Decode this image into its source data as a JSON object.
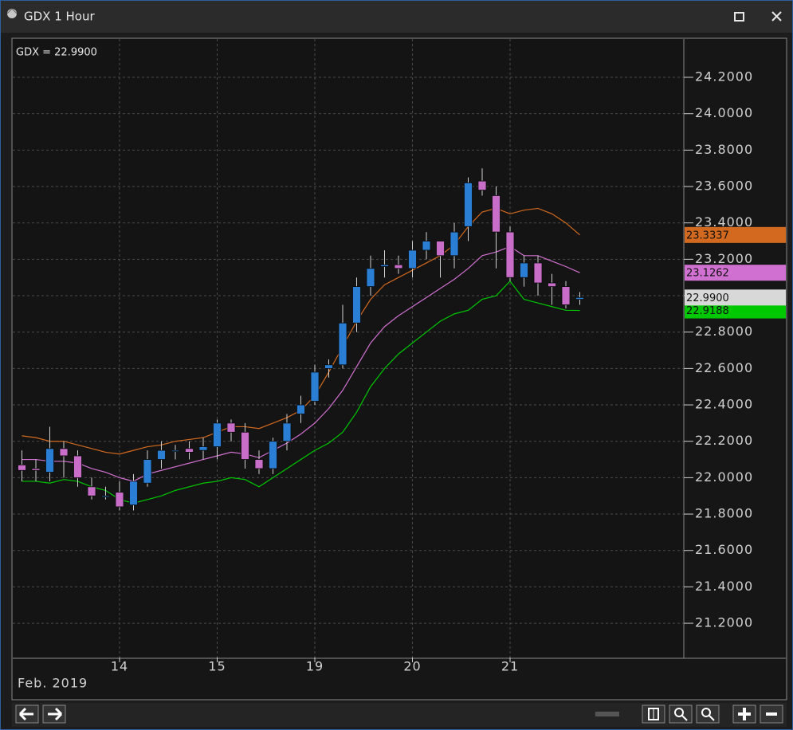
{
  "window_title": "GDX 1 Hour",
  "chart_data": {
    "type": "candlestick",
    "quote_label": "GDX = 22.9900",
    "date_label": "Feb. 2019",
    "x": [
      null,
      null,
      null,
      null,
      null,
      null,
      null,
      "14",
      null,
      null,
      null,
      null,
      null,
      null,
      "15",
      null,
      null,
      null,
      null,
      null,
      null,
      "19",
      null,
      null,
      null,
      null,
      null,
      null,
      "20",
      null,
      null,
      null,
      null,
      null,
      null,
      "21",
      null,
      null,
      null,
      null,
      null
    ],
    "open": [
      22.07,
      22.05,
      22.03,
      22.16,
      22.12,
      21.95,
      21.9,
      21.92,
      21.85,
      21.97,
      22.1,
      22.15,
      22.16,
      22.15,
      22.17,
      22.3,
      22.25,
      22.1,
      22.05,
      22.2,
      22.35,
      22.42,
      22.6,
      22.62,
      22.85,
      23.05,
      23.16,
      23.17,
      23.15,
      23.25,
      23.3,
      23.22,
      23.38,
      23.63,
      23.55,
      23.35,
      23.1,
      23.18,
      23.07,
      23.05,
      22.98
    ],
    "high": [
      22.15,
      22.1,
      22.28,
      22.2,
      22.15,
      22.0,
      21.95,
      21.98,
      22.02,
      22.15,
      22.2,
      22.18,
      22.2,
      22.22,
      22.32,
      22.32,
      22.3,
      22.15,
      22.22,
      22.35,
      22.45,
      22.62,
      22.65,
      22.95,
      23.1,
      23.22,
      23.25,
      23.22,
      23.3,
      23.35,
      23.3,
      23.4,
      23.65,
      23.7,
      23.6,
      23.38,
      23.22,
      23.22,
      23.12,
      23.08,
      23.02
    ],
    "low": [
      21.98,
      21.98,
      21.98,
      22.0,
      21.95,
      21.88,
      21.88,
      21.82,
      21.82,
      21.95,
      22.05,
      22.1,
      22.1,
      22.1,
      22.1,
      22.2,
      22.05,
      22.02,
      22.02,
      22.15,
      22.3,
      22.4,
      22.55,
      22.6,
      22.8,
      23.0,
      23.1,
      23.12,
      23.1,
      23.2,
      23.1,
      23.15,
      23.3,
      23.55,
      23.15,
      23.08,
      23.05,
      23.0,
      22.95,
      22.93,
      22.95
    ],
    "close": [
      22.04,
      22.04,
      22.16,
      22.12,
      22.0,
      21.9,
      21.9,
      21.84,
      21.98,
      22.1,
      22.15,
      22.15,
      22.14,
      22.17,
      22.3,
      22.25,
      22.1,
      22.05,
      22.2,
      22.3,
      22.4,
      22.58,
      22.62,
      22.85,
      23.05,
      23.15,
      23.17,
      23.15,
      23.25,
      23.3,
      23.22,
      23.35,
      23.62,
      23.58,
      23.35,
      23.1,
      23.18,
      23.07,
      23.05,
      22.95,
      22.99
    ],
    "last_label": "22.9900",
    "up_color": "#2a7fd4",
    "down_color": "#c86ec8",
    "wick_color": "#d0d0d0",
    "last_color": "#d8d8d8",
    "series": [
      {
        "color": "#d2691e",
        "last_label": "23.3337",
        "values": [
          22.23,
          22.22,
          22.2,
          22.2,
          22.18,
          22.16,
          22.14,
          22.13,
          22.15,
          22.17,
          22.18,
          22.2,
          22.21,
          22.22,
          22.25,
          22.28,
          22.28,
          22.27,
          22.3,
          22.33,
          22.37,
          22.45,
          22.58,
          22.72,
          22.86,
          22.98,
          23.06,
          23.1,
          23.14,
          23.18,
          23.22,
          23.28,
          23.38,
          23.46,
          23.48,
          23.45,
          23.47,
          23.48,
          23.45,
          23.4,
          23.3337
        ]
      },
      {
        "color": "#d070d0",
        "last_label": "23.1262",
        "values": [
          22.1,
          22.1,
          22.09,
          22.09,
          22.08,
          22.05,
          22.03,
          22.0,
          21.98,
          22.02,
          22.04,
          22.06,
          22.08,
          22.1,
          22.12,
          22.14,
          22.13,
          22.11,
          22.15,
          22.19,
          22.24,
          22.3,
          22.38,
          22.48,
          22.61,
          22.74,
          22.83,
          22.89,
          22.94,
          22.99,
          23.04,
          23.09,
          23.15,
          23.22,
          23.24,
          23.27,
          23.22,
          23.22,
          23.19,
          23.16,
          23.1262
        ]
      },
      {
        "color": "#00c800",
        "last_label": "22.9188",
        "values": [
          21.98,
          21.98,
          21.97,
          21.99,
          21.98,
          21.95,
          21.93,
          21.88,
          21.86,
          21.88,
          21.9,
          21.93,
          21.95,
          21.97,
          21.98,
          22.0,
          21.99,
          21.95,
          22.0,
          22.05,
          22.1,
          22.15,
          22.19,
          22.25,
          22.36,
          22.5,
          22.6,
          22.68,
          22.74,
          22.8,
          22.86,
          22.9,
          22.92,
          22.98,
          23.0,
          23.08,
          22.98,
          22.96,
          22.94,
          22.92,
          22.9188
        ]
      }
    ],
    "ylim": [
      21.012,
      24.384
    ],
    "yticks": [
      {
        "value": 21.2,
        "label": "21.2000"
      },
      {
        "value": 21.4,
        "label": "21.4000"
      },
      {
        "value": 21.6,
        "label": "21.6000"
      },
      {
        "value": 21.8,
        "label": "21.8000"
      },
      {
        "value": 22.0,
        "label": "22.0000"
      },
      {
        "value": 22.2,
        "label": "22.2000"
      },
      {
        "value": 22.4,
        "label": "22.4000"
      },
      {
        "value": 22.6,
        "label": "22.6000"
      },
      {
        "value": 22.8,
        "label": "22.8000"
      },
      {
        "value": 23.0,
        "label": "23.0000"
      },
      {
        "value": 23.2,
        "label": "23.2000"
      },
      {
        "value": 23.4,
        "label": "23.4000"
      },
      {
        "value": 23.6,
        "label": "23.6000"
      },
      {
        "value": 23.8,
        "label": "23.8000"
      },
      {
        "value": 24.0,
        "label": "24.0000"
      },
      {
        "value": 24.2,
        "label": "24.2000"
      }
    ],
    "grid": true
  }
}
